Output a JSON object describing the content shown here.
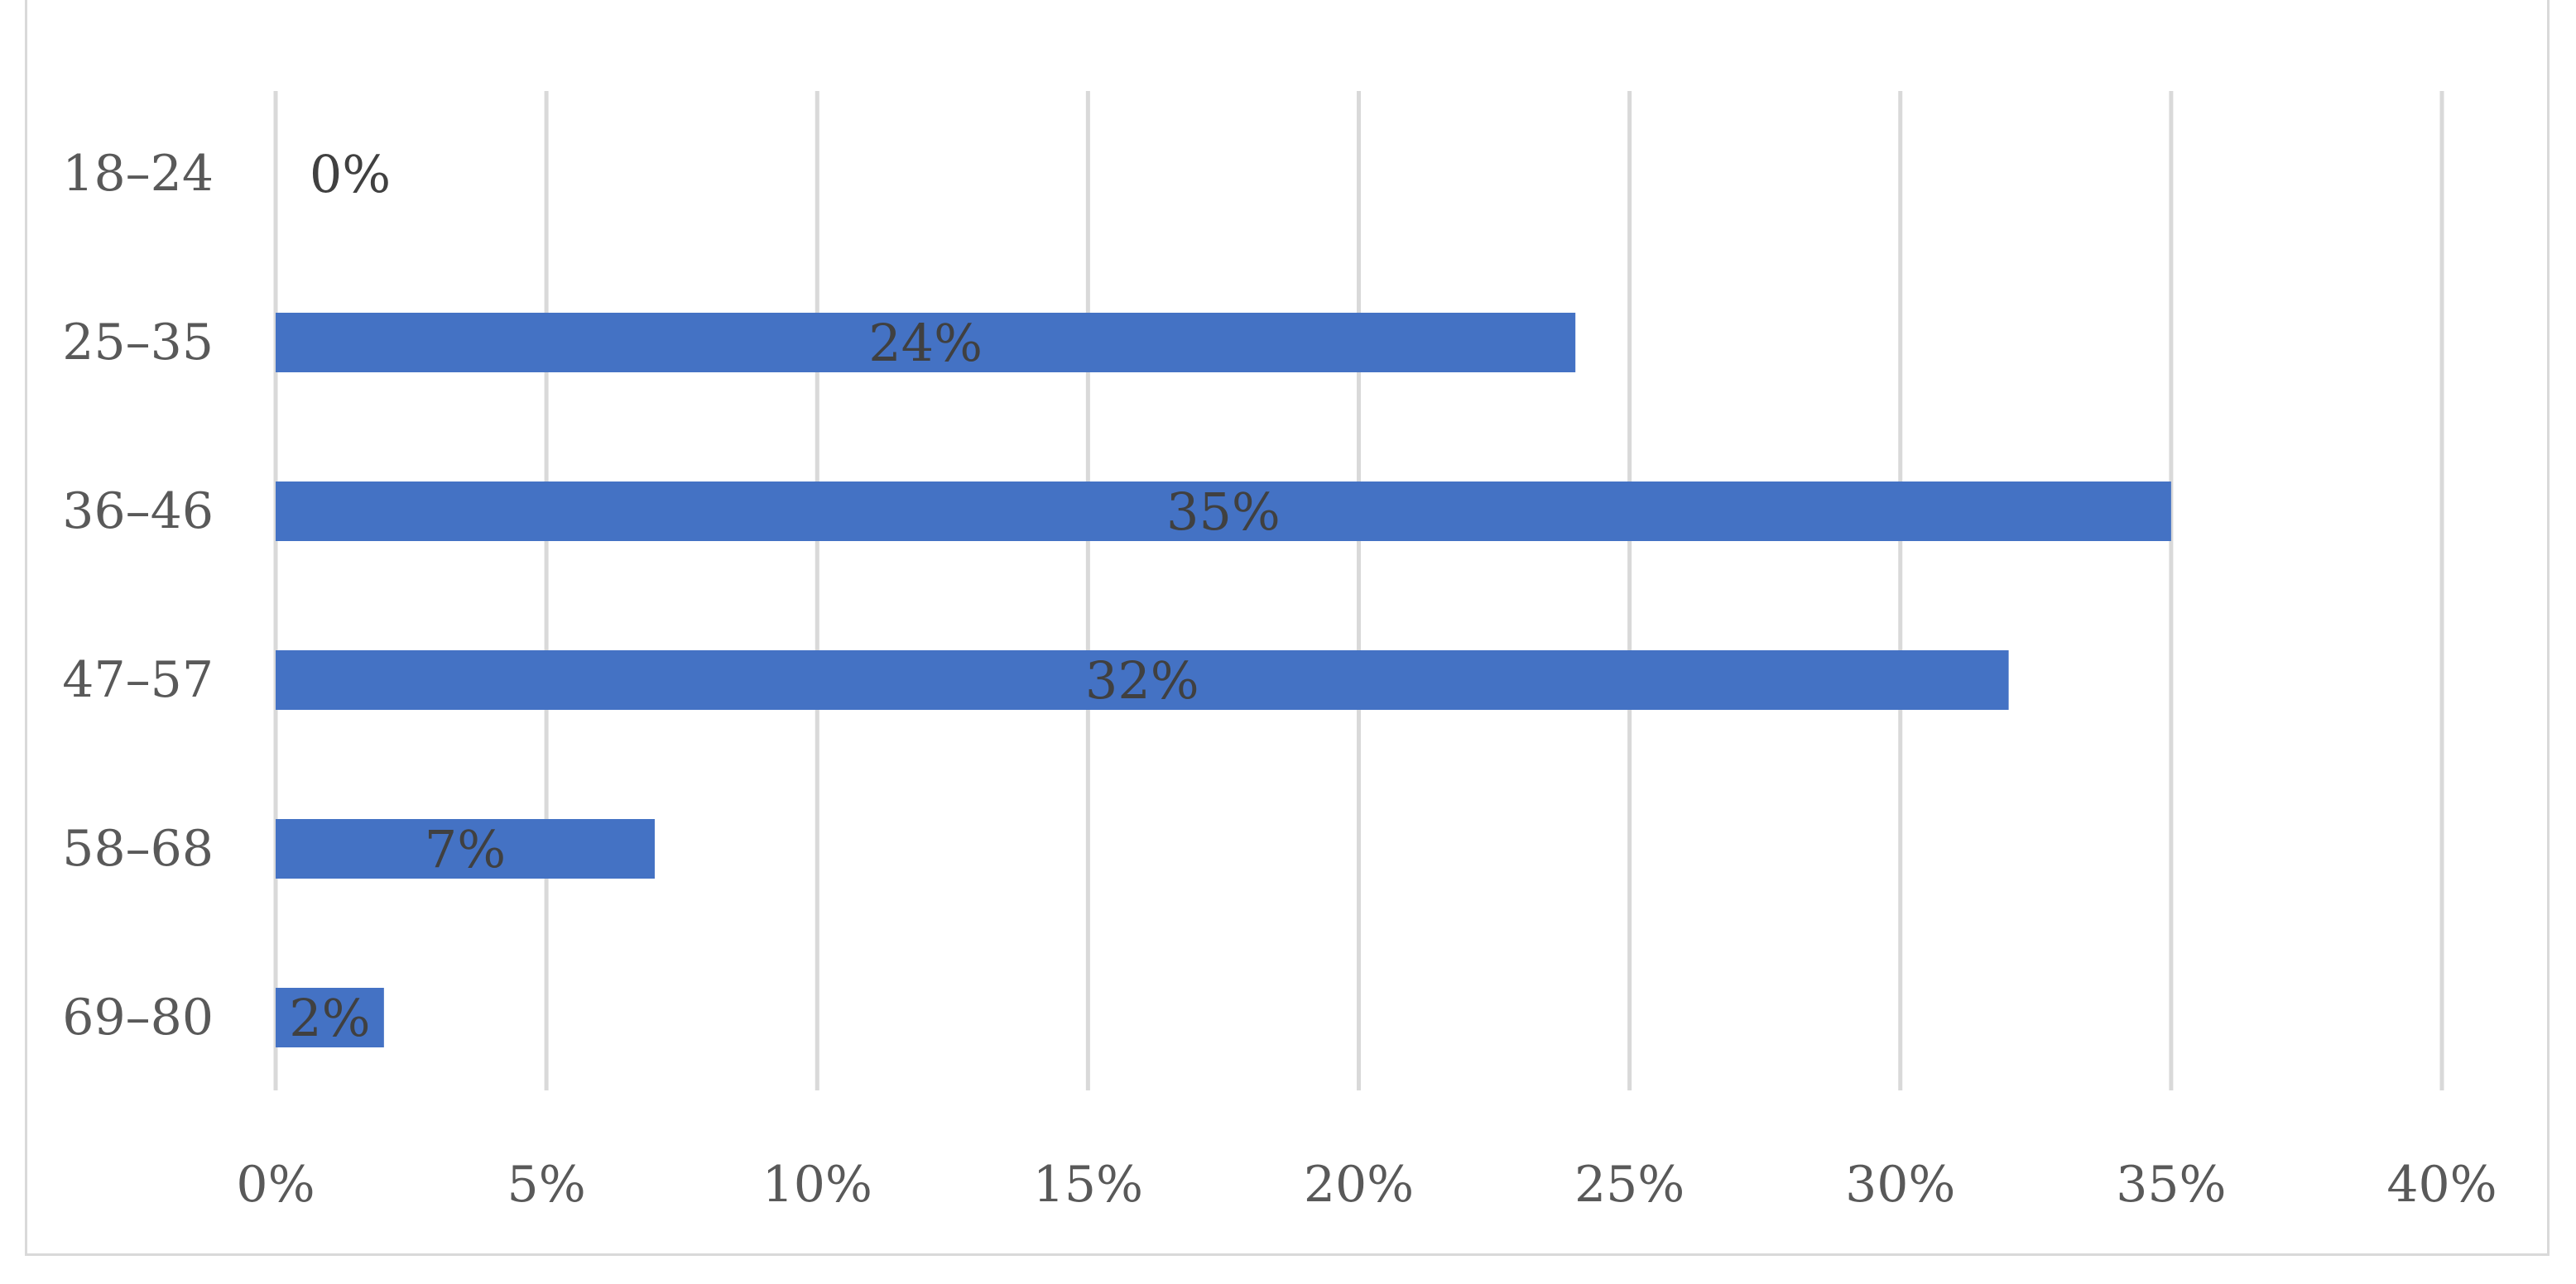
{
  "chart_data": {
    "type": "bar",
    "orientation": "horizontal",
    "categories": [
      "18–24",
      "25–35",
      "36–46",
      "47–57",
      "58–68",
      "69–80"
    ],
    "values": [
      0,
      24,
      35,
      32,
      7,
      2
    ],
    "data_labels": [
      "0%",
      "24%",
      "35%",
      "32%",
      "7%",
      "2%"
    ],
    "x_ticks": [
      0,
      5,
      10,
      15,
      20,
      25,
      30,
      35,
      40
    ],
    "x_tick_labels": [
      "0%",
      "5%",
      "10%",
      "15%",
      "20%",
      "25%",
      "30%",
      "35%",
      "40%"
    ],
    "xlim": [
      0,
      40
    ],
    "title": "",
    "xlabel": "",
    "ylabel": "",
    "grid": "vertical",
    "legend": "none",
    "bar_color": "#4472c4"
  }
}
